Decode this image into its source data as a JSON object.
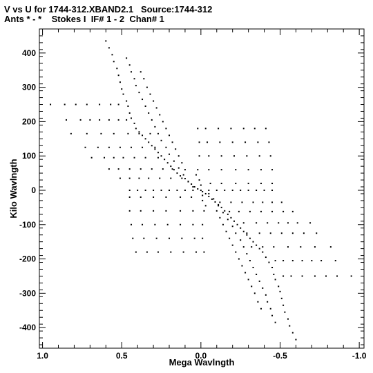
{
  "header": {
    "line1": "V vs U for 1744-312.XBAND2.1   Source:1744-312",
    "line2": "Ants * - *    Stokes I  IF# 1 - 2  Chan# 1"
  },
  "chart_data": {
    "type": "scatter",
    "xlabel": "Mega Wavlngth",
    "ylabel": "Kilo Wavlngth",
    "xlim": [
      1.02,
      -1.03
    ],
    "ylim": [
      -460,
      470
    ],
    "x_reversed": true,
    "x_ticks": [
      1.0,
      0.5,
      0.0,
      -0.5,
      -1.0
    ],
    "x_tick_labels": [
      "1.0",
      "0.5",
      "0.0",
      "-0.5",
      "-1.0"
    ],
    "y_ticks": [
      400,
      300,
      200,
      100,
      0,
      -100,
      -200,
      -300,
      -400
    ],
    "y_tick_labels": [
      "400",
      "300",
      "200",
      "100",
      "0",
      "-100",
      "-200",
      "-300",
      "-400"
    ],
    "grid": false,
    "legend": "none",
    "marker_color": "#000000",
    "points": [
      [
        0.6,
        435
      ],
      [
        0.58,
        415
      ],
      [
        0.56,
        395
      ],
      [
        0.55,
        375
      ],
      [
        0.53,
        355
      ],
      [
        0.52,
        335
      ],
      [
        0.51,
        315
      ],
      [
        0.5,
        295
      ],
      [
        0.49,
        280
      ],
      [
        0.47,
        260
      ],
      [
        0.46,
        245
      ],
      [
        0.45,
        225
      ],
      [
        0.44,
        210
      ],
      [
        0.42,
        195
      ],
      [
        0.41,
        180
      ],
      [
        0.39,
        170
      ],
      [
        0.37,
        160
      ],
      [
        0.35,
        150
      ],
      [
        0.33,
        140
      ],
      [
        0.31,
        130
      ],
      [
        0.29,
        120
      ],
      [
        0.27,
        110
      ],
      [
        0.25,
        100
      ],
      [
        0.23,
        90
      ],
      [
        0.21,
        80
      ],
      [
        0.19,
        70
      ],
      [
        0.17,
        60
      ],
      [
        0.15,
        50
      ],
      [
        0.13,
        42
      ],
      [
        0.1,
        34
      ],
      [
        0.08,
        26
      ],
      [
        0.06,
        18
      ],
      [
        0.04,
        10
      ],
      [
        0.02,
        4
      ],
      [
        -0.01,
        -4
      ],
      [
        -0.03,
        -10
      ],
      [
        -0.05,
        -18
      ],
      [
        -0.07,
        -26
      ],
      [
        -0.09,
        -34
      ],
      [
        -0.11,
        -42
      ],
      [
        -0.13,
        -50
      ],
      [
        -0.15,
        -60
      ],
      [
        -0.17,
        -70
      ],
      [
        -0.19,
        -80
      ],
      [
        -0.21,
        -90
      ],
      [
        -0.23,
        -100
      ],
      [
        -0.25,
        -110
      ],
      [
        -0.27,
        -120
      ],
      [
        -0.29,
        -130
      ],
      [
        -0.31,
        -140
      ],
      [
        -0.33,
        -150
      ],
      [
        -0.35,
        -160
      ],
      [
        -0.37,
        -170
      ],
      [
        -0.39,
        -180
      ],
      [
        -0.41,
        -195
      ],
      [
        -0.43,
        -210
      ],
      [
        -0.45,
        -225
      ],
      [
        -0.46,
        -245
      ],
      [
        -0.47,
        -260
      ],
      [
        -0.49,
        -280
      ],
      [
        -0.5,
        -295
      ],
      [
        -0.51,
        -315
      ],
      [
        -0.52,
        -335
      ],
      [
        -0.53,
        -355
      ],
      [
        -0.55,
        -375
      ],
      [
        -0.56,
        -395
      ],
      [
        -0.58,
        -415
      ],
      [
        -0.6,
        -435
      ],
      [
        0.47,
        385
      ],
      [
        0.45,
        365
      ],
      [
        0.44,
        345
      ],
      [
        0.42,
        325
      ],
      [
        0.41,
        305
      ],
      [
        0.39,
        285
      ],
      [
        0.37,
        265
      ],
      [
        0.35,
        245
      ],
      [
        0.33,
        225
      ],
      [
        0.31,
        205
      ],
      [
        0.29,
        185
      ],
      [
        0.27,
        165
      ],
      [
        0.25,
        145
      ],
      [
        0.22,
        125
      ],
      [
        0.2,
        105
      ],
      [
        0.17,
        85
      ],
      [
        0.14,
        65
      ],
      [
        0.11,
        45
      ],
      [
        0.08,
        25
      ],
      [
        0.05,
        10
      ],
      [
        -0.05,
        -10
      ],
      [
        -0.08,
        -25
      ],
      [
        -0.11,
        -45
      ],
      [
        -0.14,
        -65
      ],
      [
        -0.17,
        -85
      ],
      [
        -0.2,
        -105
      ],
      [
        -0.22,
        -125
      ],
      [
        -0.25,
        -145
      ],
      [
        -0.27,
        -165
      ],
      [
        -0.29,
        -185
      ],
      [
        -0.31,
        -205
      ],
      [
        -0.33,
        -225
      ],
      [
        -0.35,
        -245
      ],
      [
        -0.37,
        -265
      ],
      [
        -0.39,
        -285
      ],
      [
        -0.41,
        -305
      ],
      [
        -0.42,
        -325
      ],
      [
        -0.44,
        -345
      ],
      [
        -0.45,
        -365
      ],
      [
        -0.47,
        -385
      ],
      [
        0.38,
        345
      ],
      [
        0.36,
        325
      ],
      [
        0.34,
        300
      ],
      [
        0.32,
        280
      ],
      [
        0.3,
        260
      ],
      [
        0.28,
        240
      ],
      [
        0.26,
        220
      ],
      [
        0.24,
        200
      ],
      [
        0.22,
        180
      ],
      [
        0.2,
        160
      ],
      [
        0.18,
        140
      ],
      [
        0.16,
        120
      ],
      [
        0.14,
        100
      ],
      [
        0.12,
        80
      ],
      [
        0.1,
        60
      ],
      [
        -0.1,
        -60
      ],
      [
        -0.12,
        -80
      ],
      [
        -0.14,
        -100
      ],
      [
        -0.16,
        -120
      ],
      [
        -0.18,
        -140
      ],
      [
        -0.2,
        -160
      ],
      [
        -0.22,
        -180
      ],
      [
        -0.24,
        -200
      ],
      [
        -0.26,
        -220
      ],
      [
        -0.28,
        -240
      ],
      [
        -0.3,
        -260
      ],
      [
        -0.32,
        -280
      ],
      [
        -0.34,
        -300
      ],
      [
        -0.36,
        -325
      ],
      [
        -0.38,
        -345
      ],
      [
        0.95,
        250
      ],
      [
        0.86,
        250
      ],
      [
        0.79,
        250
      ],
      [
        0.72,
        250
      ],
      [
        0.64,
        250
      ],
      [
        0.57,
        250
      ],
      [
        0.52,
        250
      ],
      [
        -0.52,
        -250
      ],
      [
        -0.57,
        -250
      ],
      [
        -0.64,
        -250
      ],
      [
        -0.72,
        -250
      ],
      [
        -0.79,
        -250
      ],
      [
        -0.86,
        -250
      ],
      [
        -0.95,
        -250
      ],
      [
        0.76,
        205
      ],
      [
        0.7,
        205
      ],
      [
        0.64,
        205
      ],
      [
        0.58,
        205
      ],
      [
        0.52,
        205
      ],
      [
        0.47,
        205
      ],
      [
        0.85,
        205
      ],
      [
        0.82,
        165
      ],
      [
        0.72,
        165
      ],
      [
        0.63,
        165
      ],
      [
        0.55,
        165
      ],
      [
        0.46,
        165
      ],
      [
        0.39,
        165
      ],
      [
        0.32,
        165
      ],
      [
        0.73,
        125
      ],
      [
        0.65,
        125
      ],
      [
        0.58,
        125
      ],
      [
        0.51,
        125
      ],
      [
        0.44,
        125
      ],
      [
        0.37,
        125
      ],
      [
        0.29,
        125
      ],
      [
        0.69,
        95
      ],
      [
        0.61,
        95
      ],
      [
        0.55,
        95
      ],
      [
        0.49,
        95
      ],
      [
        0.42,
        95
      ],
      [
        0.35,
        95
      ],
      [
        0.27,
        95
      ],
      [
        0.58,
        62
      ],
      [
        0.52,
        62
      ],
      [
        0.45,
        62
      ],
      [
        0.38,
        62
      ],
      [
        0.31,
        62
      ],
      [
        0.24,
        62
      ],
      [
        0.18,
        62
      ],
      [
        0.51,
        35
      ],
      [
        0.45,
        35
      ],
      [
        0.39,
        35
      ],
      [
        0.33,
        35
      ],
      [
        0.26,
        35
      ],
      [
        0.19,
        35
      ],
      [
        0.12,
        35
      ],
      [
        0.45,
        0
      ],
      [
        0.4,
        0
      ],
      [
        0.35,
        0
      ],
      [
        0.3,
        0
      ],
      [
        0.25,
        0
      ],
      [
        0.2,
        0
      ],
      [
        0.15,
        0
      ],
      [
        0.1,
        0
      ],
      [
        0.05,
        0
      ],
      [
        0.0,
        0
      ],
      [
        -0.05,
        0
      ],
      [
        -0.1,
        0
      ],
      [
        -0.15,
        0
      ],
      [
        -0.2,
        0
      ],
      [
        -0.25,
        0
      ],
      [
        -0.3,
        0
      ],
      [
        -0.35,
        0
      ],
      [
        -0.4,
        0
      ],
      [
        -0.45,
        0
      ],
      [
        -0.12,
        -35
      ],
      [
        -0.19,
        -35
      ],
      [
        -0.26,
        -35
      ],
      [
        -0.33,
        -35
      ],
      [
        -0.39,
        -35
      ],
      [
        -0.45,
        -35
      ],
      [
        -0.51,
        -35
      ],
      [
        -0.18,
        -62
      ],
      [
        -0.24,
        -62
      ],
      [
        -0.31,
        -62
      ],
      [
        -0.38,
        -62
      ],
      [
        -0.45,
        -62
      ],
      [
        -0.52,
        -62
      ],
      [
        -0.58,
        -62
      ],
      [
        -0.27,
        -95
      ],
      [
        -0.35,
        -95
      ],
      [
        -0.42,
        -95
      ],
      [
        -0.49,
        -95
      ],
      [
        -0.55,
        -95
      ],
      [
        -0.61,
        -95
      ],
      [
        -0.69,
        -95
      ],
      [
        -0.29,
        -125
      ],
      [
        -0.37,
        -125
      ],
      [
        -0.44,
        -125
      ],
      [
        -0.51,
        -125
      ],
      [
        -0.58,
        -125
      ],
      [
        -0.65,
        -125
      ],
      [
        -0.73,
        -125
      ],
      [
        -0.32,
        -165
      ],
      [
        -0.39,
        -165
      ],
      [
        -0.46,
        -165
      ],
      [
        -0.55,
        -165
      ],
      [
        -0.63,
        -165
      ],
      [
        -0.72,
        -165
      ],
      [
        -0.82,
        -165
      ],
      [
        -0.47,
        -205
      ],
      [
        -0.52,
        -205
      ],
      [
        -0.58,
        -205
      ],
      [
        -0.64,
        -205
      ],
      [
        -0.7,
        -205
      ],
      [
        -0.76,
        -205
      ],
      [
        -0.85,
        -205
      ],
      [
        0.45,
        -20
      ],
      [
        0.45,
        -60
      ],
      [
        0.44,
        -100
      ],
      [
        0.43,
        -140
      ],
      [
        0.41,
        -180
      ],
      [
        0.38,
        -20
      ],
      [
        0.38,
        -60
      ],
      [
        0.37,
        -100
      ],
      [
        0.36,
        -140
      ],
      [
        0.34,
        -180
      ],
      [
        0.3,
        -20
      ],
      [
        0.3,
        -60
      ],
      [
        0.29,
        -100
      ],
      [
        0.28,
        -140
      ],
      [
        0.27,
        -180
      ],
      [
        0.22,
        -20
      ],
      [
        0.22,
        -60
      ],
      [
        0.21,
        -100
      ],
      [
        0.2,
        -140
      ],
      [
        0.19,
        -180
      ],
      [
        0.13,
        -20
      ],
      [
        0.13,
        -60
      ],
      [
        0.13,
        -100
      ],
      [
        0.12,
        -140
      ],
      [
        0.11,
        -180
      ],
      [
        0.06,
        -20
      ],
      [
        0.05,
        -60
      ],
      [
        0.05,
        -100
      ],
      [
        0.04,
        -140
      ],
      [
        0.03,
        -180
      ],
      [
        -0.45,
        20
      ],
      [
        -0.45,
        60
      ],
      [
        -0.44,
        100
      ],
      [
        -0.43,
        140
      ],
      [
        -0.41,
        180
      ],
      [
        -0.38,
        20
      ],
      [
        -0.38,
        60
      ],
      [
        -0.37,
        100
      ],
      [
        -0.36,
        140
      ],
      [
        -0.34,
        180
      ],
      [
        -0.3,
        20
      ],
      [
        -0.3,
        60
      ],
      [
        -0.29,
        100
      ],
      [
        -0.28,
        140
      ],
      [
        -0.27,
        180
      ],
      [
        -0.22,
        20
      ],
      [
        -0.22,
        60
      ],
      [
        -0.21,
        100
      ],
      [
        -0.2,
        140
      ],
      [
        -0.19,
        180
      ],
      [
        -0.13,
        20
      ],
      [
        -0.13,
        60
      ],
      [
        -0.13,
        100
      ],
      [
        -0.12,
        140
      ],
      [
        -0.11,
        180
      ],
      [
        -0.06,
        20
      ],
      [
        -0.05,
        60
      ],
      [
        -0.05,
        100
      ],
      [
        -0.04,
        140
      ],
      [
        -0.03,
        180
      ],
      [
        0.02,
        60
      ],
      [
        0.01,
        100
      ],
      [
        0.01,
        140
      ],
      [
        0.02,
        180
      ],
      [
        -0.02,
        -60
      ],
      [
        -0.01,
        -100
      ],
      [
        -0.01,
        -140
      ],
      [
        -0.02,
        -180
      ],
      [
        0.01,
        30
      ],
      [
        0.0,
        15
      ],
      [
        -0.01,
        -15
      ],
      [
        -0.01,
        -30
      ],
      [
        0.03,
        45
      ],
      [
        -0.03,
        -45
      ]
    ]
  }
}
